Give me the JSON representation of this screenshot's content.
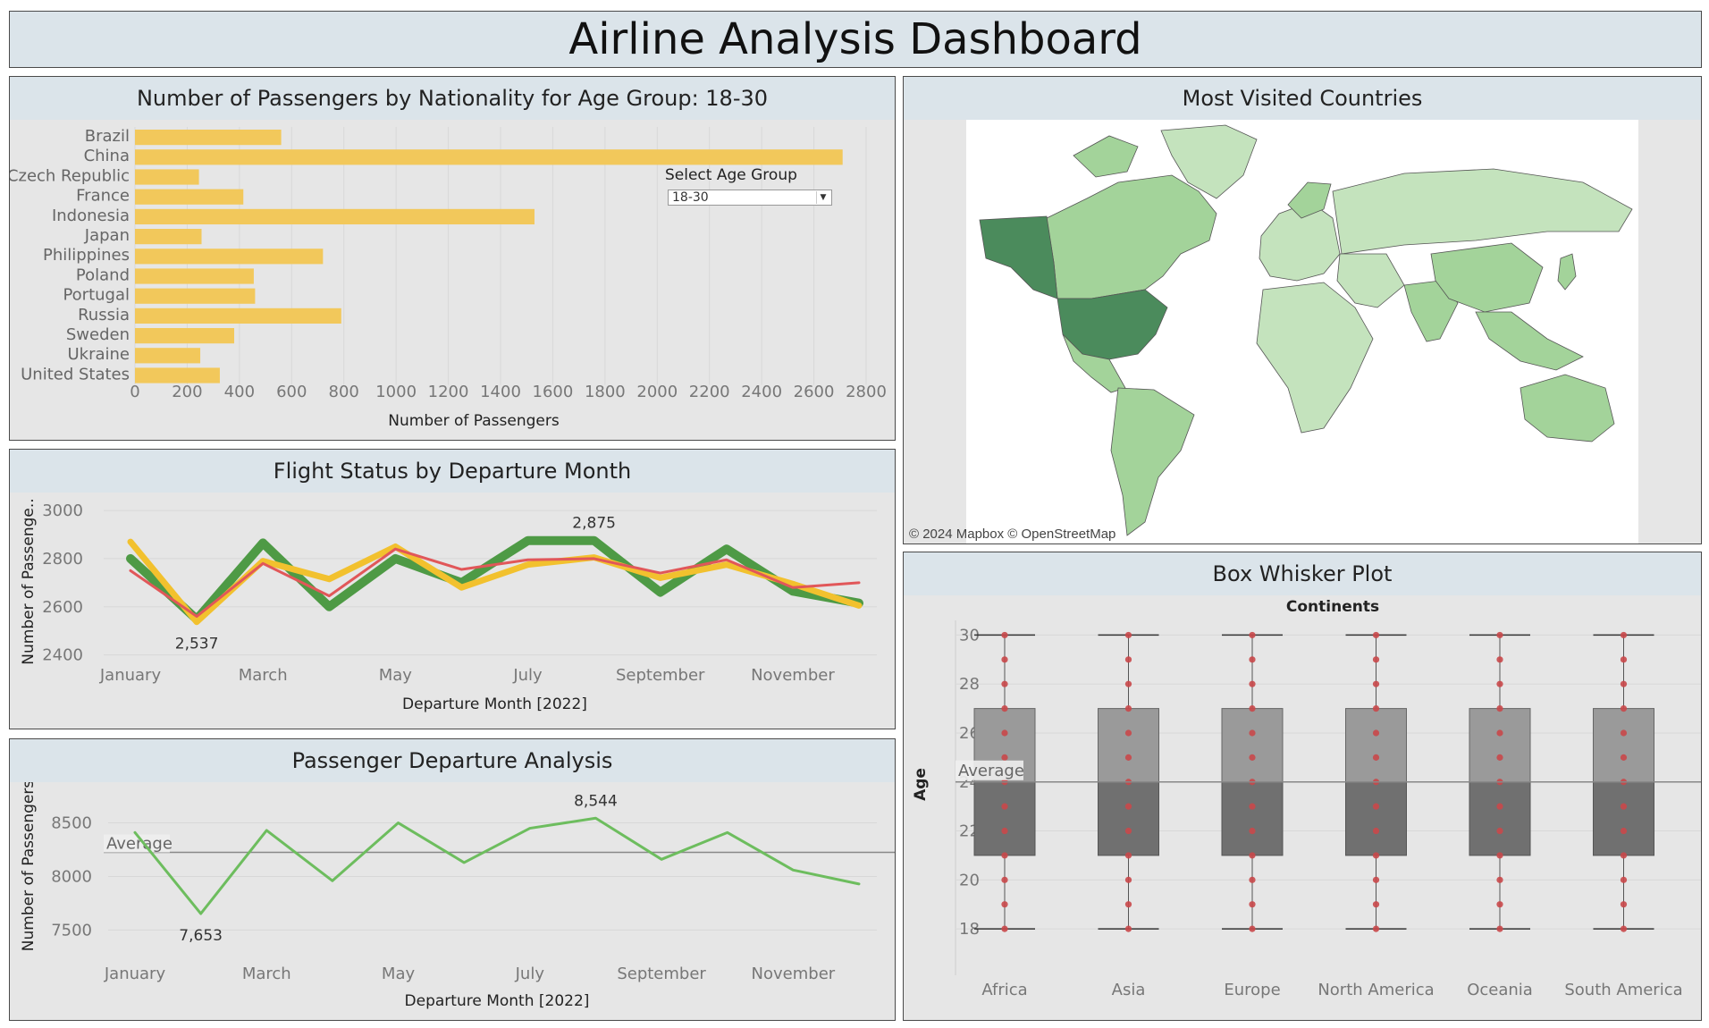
{
  "dashboard": {
    "title": "Airline Analysis Dashboard"
  },
  "filter": {
    "label": "Select Age Group",
    "selected": "18-30"
  },
  "map_panel": {
    "title": "Most Visited Countries",
    "credit": "© 2024 Mapbox © OpenStreetMap"
  },
  "chart_data": [
    {
      "id": "nationality",
      "type": "bar",
      "orientation": "horizontal",
      "title": "Number of Passengers by Nationality for Age Group: 18-30",
      "xlabel": "Number of Passengers",
      "categories": [
        "Brazil",
        "China",
        "Czech Republic",
        "France",
        "Indonesia",
        "Japan",
        "Philippines",
        "Poland",
        "Portugal",
        "Russia",
        "Sweden",
        "Ukraine",
        "United States"
      ],
      "values": [
        560,
        2710,
        245,
        415,
        1530,
        255,
        720,
        455,
        460,
        790,
        380,
        250,
        325
      ],
      "xlim": [
        0,
        2800
      ],
      "xticks": [
        "0",
        "200",
        "400",
        "600",
        "800",
        "1000",
        "1200",
        "1400",
        "1600",
        "1800",
        "2000",
        "2200",
        "2400",
        "2600",
        "2800"
      ],
      "color": "#f2c85b"
    },
    {
      "id": "flight_status",
      "type": "line",
      "title": "Flight Status by Departure Month",
      "xlabel": "Departure Month [2022]",
      "ylabel": "Number of Passenge..",
      "x": [
        "January",
        "February",
        "March",
        "April",
        "May",
        "June",
        "July",
        "August",
        "September",
        "October",
        "November",
        "December"
      ],
      "xticks": [
        "January",
        "March",
        "May",
        "July",
        "September",
        "November"
      ],
      "ylim": [
        2380,
        3030
      ],
      "yticks": [
        "2400",
        "2600",
        "2800",
        "3000"
      ],
      "series": [
        {
          "color": "#4e9a45",
          "values": [
            2800,
            2548,
            2865,
            2600,
            2800,
            2700,
            2875,
            2875,
            2660,
            2840,
            2665,
            2615
          ]
        },
        {
          "color": "#f2c12e",
          "values": [
            2870,
            2537,
            2790,
            2715,
            2850,
            2680,
            2775,
            2805,
            2720,
            2775,
            2695,
            2605
          ]
        },
        {
          "color": "#e15759",
          "values": [
            2750,
            2560,
            2780,
            2645,
            2840,
            2755,
            2795,
            2800,
            2740,
            2795,
            2680,
            2700
          ]
        }
      ],
      "annotations": [
        {
          "text": "2,875",
          "month": "August",
          "value": 2875
        },
        {
          "text": "2,537",
          "month": "February",
          "value": 2537
        }
      ]
    },
    {
      "id": "departure",
      "type": "line",
      "title": "Passenger Departure Analysis",
      "xlabel": "Departure Month [2022]",
      "ylabel": "Number of Passengers",
      "x": [
        "January",
        "February",
        "March",
        "April",
        "May",
        "June",
        "July",
        "August",
        "September",
        "October",
        "November",
        "December"
      ],
      "xticks": [
        "January",
        "March",
        "May",
        "July",
        "September",
        "November"
      ],
      "ylim": [
        7420,
        8780
      ],
      "yticks": [
        "7500",
        "8000",
        "8500"
      ],
      "series": [
        {
          "color": "#6dbd5e",
          "values": [
            8410,
            7653,
            8430,
            7960,
            8500,
            8130,
            8450,
            8544,
            8160,
            8410,
            8060,
            7930
          ]
        }
      ],
      "reference_line": {
        "label": "Average",
        "value": 8225
      },
      "annotations": [
        {
          "text": "8,544",
          "month": "August",
          "value": 8544
        },
        {
          "text": "7,653",
          "month": "February",
          "value": 7653
        }
      ]
    },
    {
      "id": "boxplot",
      "type": "box",
      "title": "Box Whisker Plot",
      "column_header": "Continents",
      "ylabel": "Age",
      "categories": [
        "Africa",
        "Asia",
        "Europe",
        "North America",
        "Oceania",
        "South America"
      ],
      "ylim": [
        17.2,
        30.6
      ],
      "yticks": [
        "18",
        "20",
        "22",
        "24",
        "26",
        "28",
        "30"
      ],
      "stats": {
        "min": 18,
        "q1": 21,
        "median": 24,
        "q3": 27,
        "max": 30
      },
      "points": [
        18,
        19,
        20,
        21,
        22,
        23,
        24,
        25,
        26,
        27,
        28,
        29,
        30
      ],
      "reference_line": {
        "label": "Average",
        "value": 24
      }
    }
  ]
}
